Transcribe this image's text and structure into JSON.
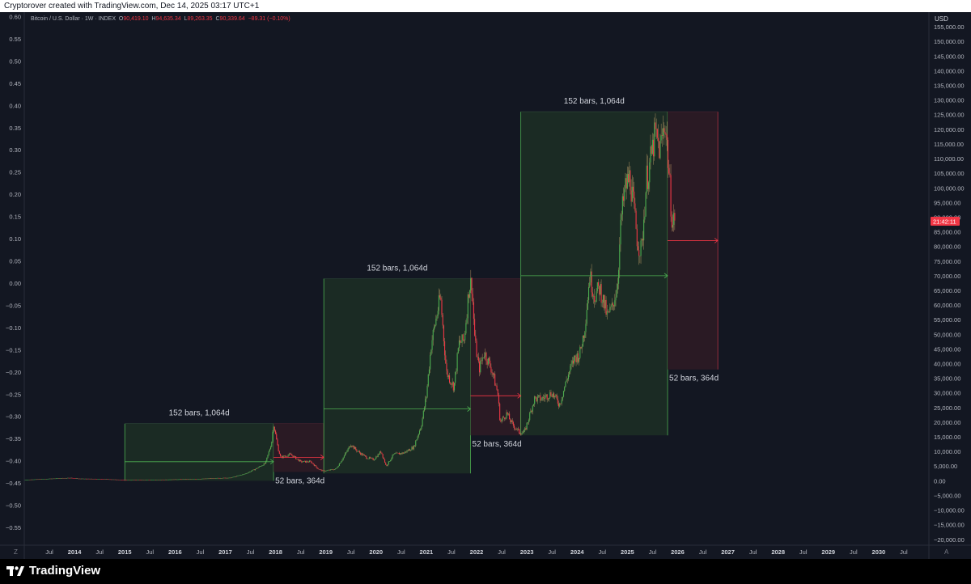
{
  "attribution": "Cryptorover created with TradingView.com, Dec 14, 2025 03:17 UTC+1",
  "legend": {
    "symbol": "Bitcoin / U.S. Dollar · 1W · INDEX",
    "o_label": "O",
    "o": "90,419.10",
    "h_label": "H",
    "h": "94,635.34",
    "l_label": "L",
    "l": "89,263.35",
    "c_label": "C",
    "c": "90,339.64",
    "change": "−89.31 (−0.10%)"
  },
  "currency": "USD",
  "last_price_label": "21:42:11",
  "footer": {
    "brand": "TradingView"
  },
  "corner_labels": {
    "left": "Z",
    "right": "A"
  },
  "colors": {
    "background": "#131722",
    "up": "#4caf50",
    "down": "#f23645",
    "accumulation_zone": "#1b2b24",
    "bear_zone": "#2a1a24"
  },
  "chart_data": {
    "type": "line",
    "title": "Bitcoin / U.S. Dollar · 1W · INDEX",
    "xlim": [
      2013.0,
      2031.0
    ],
    "ylim_right": [
      -22000,
      160000
    ],
    "ylim_left": [
      -0.59,
      0.61
    ],
    "right_ticks": [
      "155,000.00",
      "150,000.00",
      "145,000.00",
      "140,000.00",
      "135,000.00",
      "130,000.00",
      "125,000.00",
      "120,000.00",
      "115,000.00",
      "110,000.00",
      "105,000.00",
      "100,000.00",
      "95,000.00",
      "90,000.00",
      "85,000.00",
      "80,000.00",
      "75,000.00",
      "70,000.00",
      "65,000.00",
      "60,000.00",
      "55,000.00",
      "50,000.00",
      "45,000.00",
      "40,000.00",
      "35,000.00",
      "30,000.00",
      "25,000.00",
      "20,000.00",
      "15,000.00",
      "10,000.00",
      "5,000.00",
      "0.00",
      "−5,000.00",
      "−10,000.00",
      "−15,000.00",
      "−20,000.00"
    ],
    "right_values": [
      155000,
      150000,
      145000,
      140000,
      135000,
      130000,
      125000,
      120000,
      115000,
      110000,
      105000,
      100000,
      95000,
      90000,
      85000,
      80000,
      75000,
      70000,
      65000,
      60000,
      55000,
      50000,
      45000,
      40000,
      35000,
      30000,
      25000,
      20000,
      15000,
      10000,
      5000,
      0,
      -5000,
      -10000,
      -15000,
      -20000
    ],
    "left_ticks": [
      "0.60",
      "0.55",
      "0.50",
      "0.45",
      "0.40",
      "0.35",
      "0.30",
      "0.25",
      "0.20",
      "0.15",
      "0.10",
      "0.05",
      "0.00",
      "−0.05",
      "−0.10",
      "−0.15",
      "−0.20",
      "−0.25",
      "−0.30",
      "−0.35",
      "−0.40",
      "−0.45",
      "−0.50",
      "−0.55"
    ],
    "left_values": [
      0.6,
      0.55,
      0.5,
      0.45,
      0.4,
      0.35,
      0.3,
      0.25,
      0.2,
      0.15,
      0.1,
      0.05,
      0.0,
      -0.05,
      -0.1,
      -0.15,
      -0.2,
      -0.25,
      -0.3,
      -0.35,
      -0.4,
      -0.45,
      -0.5,
      -0.55
    ],
    "x_ticks": [
      {
        "label": "Jul",
        "x": 2013.5
      },
      {
        "label": "2014",
        "x": 2014.0
      },
      {
        "label": "Jul",
        "x": 2014.5
      },
      {
        "label": "2015",
        "x": 2015.0
      },
      {
        "label": "Jul",
        "x": 2015.5
      },
      {
        "label": "2016",
        "x": 2016.0
      },
      {
        "label": "Jul",
        "x": 2016.5
      },
      {
        "label": "2017",
        "x": 2017.0
      },
      {
        "label": "Jul",
        "x": 2017.5
      },
      {
        "label": "2018",
        "x": 2018.0
      },
      {
        "label": "Jul",
        "x": 2018.5
      },
      {
        "label": "2019",
        "x": 2019.0
      },
      {
        "label": "Jul",
        "x": 2019.5
      },
      {
        "label": "2020",
        "x": 2020.0
      },
      {
        "label": "Jul",
        "x": 2020.5
      },
      {
        "label": "2021",
        "x": 2021.0
      },
      {
        "label": "Jul",
        "x": 2021.5
      },
      {
        "label": "2022",
        "x": 2022.0
      },
      {
        "label": "Jul",
        "x": 2022.5
      },
      {
        "label": "2023",
        "x": 2023.0
      },
      {
        "label": "Jul",
        "x": 2023.5
      },
      {
        "label": "2024",
        "x": 2024.0
      },
      {
        "label": "Jul",
        "x": 2024.5
      },
      {
        "label": "2025",
        "x": 2025.0
      },
      {
        "label": "Jul",
        "x": 2025.5
      },
      {
        "label": "2026",
        "x": 2026.0
      },
      {
        "label": "Jul",
        "x": 2026.5
      },
      {
        "label": "2027",
        "x": 2027.0
      },
      {
        "label": "Jul",
        "x": 2027.5
      },
      {
        "label": "2028",
        "x": 2028.0
      },
      {
        "label": "Jul",
        "x": 2028.5
      },
      {
        "label": "2029",
        "x": 2029.0
      },
      {
        "label": "Jul",
        "x": 2029.5
      },
      {
        "label": "2030",
        "x": 2030.0
      },
      {
        "label": "Jul",
        "x": 2030.5
      }
    ],
    "series": [
      {
        "points": [
          [
            2013.0,
            300
          ],
          [
            2013.9,
            1000
          ],
          [
            2014.1,
            700
          ],
          [
            2014.5,
            600
          ],
          [
            2014.9,
            350
          ],
          [
            2015.0,
            250
          ],
          [
            2015.5,
            250
          ],
          [
            2015.9,
            430
          ],
          [
            2016.5,
            650
          ],
          [
            2016.9,
            950
          ],
          [
            2017.1,
            1000
          ],
          [
            2017.4,
            2400
          ],
          [
            2017.6,
            4000
          ],
          [
            2017.8,
            6000
          ],
          [
            2017.92,
            13000
          ],
          [
            2017.96,
            19500
          ],
          [
            2018.05,
            11000
          ],
          [
            2018.1,
            8000
          ],
          [
            2018.3,
            9000
          ],
          [
            2018.5,
            6500
          ],
          [
            2018.7,
            6500
          ],
          [
            2018.85,
            4000
          ],
          [
            2018.95,
            3300
          ],
          [
            2019.2,
            4000
          ],
          [
            2019.35,
            8000
          ],
          [
            2019.5,
            12500
          ],
          [
            2019.6,
            10500
          ],
          [
            2019.8,
            8000
          ],
          [
            2019.95,
            7200
          ],
          [
            2020.1,
            10000
          ],
          [
            2020.2,
            5000
          ],
          [
            2020.35,
            9000
          ],
          [
            2020.55,
            9500
          ],
          [
            2020.75,
            11500
          ],
          [
            2020.9,
            19000
          ],
          [
            2021.0,
            29000
          ],
          [
            2021.1,
            47000
          ],
          [
            2021.28,
            63000
          ],
          [
            2021.4,
            37000
          ],
          [
            2021.55,
            32000
          ],
          [
            2021.65,
            47000
          ],
          [
            2021.75,
            48000
          ],
          [
            2021.85,
            66000
          ],
          [
            2021.9,
            68000
          ],
          [
            2021.97,
            47000
          ],
          [
            2022.05,
            38000
          ],
          [
            2022.15,
            44000
          ],
          [
            2022.3,
            38000
          ],
          [
            2022.42,
            30000
          ],
          [
            2022.47,
            20000
          ],
          [
            2022.6,
            23000
          ],
          [
            2022.7,
            19500
          ],
          [
            2022.85,
            16500
          ],
          [
            2022.95,
            16500
          ],
          [
            2023.05,
            22000
          ],
          [
            2023.15,
            28000
          ],
          [
            2023.3,
            28000
          ],
          [
            2023.5,
            30000
          ],
          [
            2023.65,
            26000
          ],
          [
            2023.8,
            35000
          ],
          [
            2023.95,
            42000
          ],
          [
            2024.05,
            43000
          ],
          [
            2024.15,
            52000
          ],
          [
            2024.25,
            70000
          ],
          [
            2024.35,
            63000
          ],
          [
            2024.45,
            66000
          ],
          [
            2024.6,
            56000
          ],
          [
            2024.7,
            59000
          ],
          [
            2024.8,
            67000
          ],
          [
            2024.88,
            90000
          ],
          [
            2024.96,
            100000
          ],
          [
            2025.05,
            104000
          ],
          [
            2025.2,
            82000
          ],
          [
            2025.28,
            78000
          ],
          [
            2025.38,
            103000
          ],
          [
            2025.45,
            108000
          ],
          [
            2025.55,
            118000
          ],
          [
            2025.65,
            113000
          ],
          [
            2025.75,
            123000
          ],
          [
            2025.8,
            112000
          ],
          [
            2025.86,
            96000
          ],
          [
            2025.9,
            87000
          ],
          [
            2025.95,
            91000
          ]
        ]
      }
    ],
    "cycles": [
      {
        "green_x": [
          2015.0,
          2017.96
        ],
        "green_y": [
          0,
          19500
        ],
        "label_green": "152 bars, 1,064d",
        "arrow_green_y": 6500,
        "red_x": [
          2017.96,
          2018.96
        ],
        "red_y": [
          3000,
          19500
        ],
        "label_red": "52 bars, 364d",
        "arrow_red_y": 8000
      },
      {
        "green_x": [
          2018.96,
          2021.88
        ],
        "green_y": [
          2500,
          69000
        ],
        "label_green": "152 bars, 1,064d",
        "arrow_green_y": 24500,
        "red_x": [
          2021.88,
          2022.88
        ],
        "red_y": [
          15500,
          69000
        ],
        "label_red": "52 bars, 364d",
        "arrow_red_y": 29000
      },
      {
        "green_x": [
          2022.88,
          2025.8
        ],
        "green_y": [
          15500,
          126000
        ],
        "label_green": "152 bars, 1,064d",
        "arrow_green_y": 70000,
        "red_x": [
          2025.8,
          2026.8
        ],
        "red_y": [
          38000,
          126000
        ],
        "label_red": "52 bars, 364d",
        "arrow_red_y": 82000
      }
    ]
  }
}
